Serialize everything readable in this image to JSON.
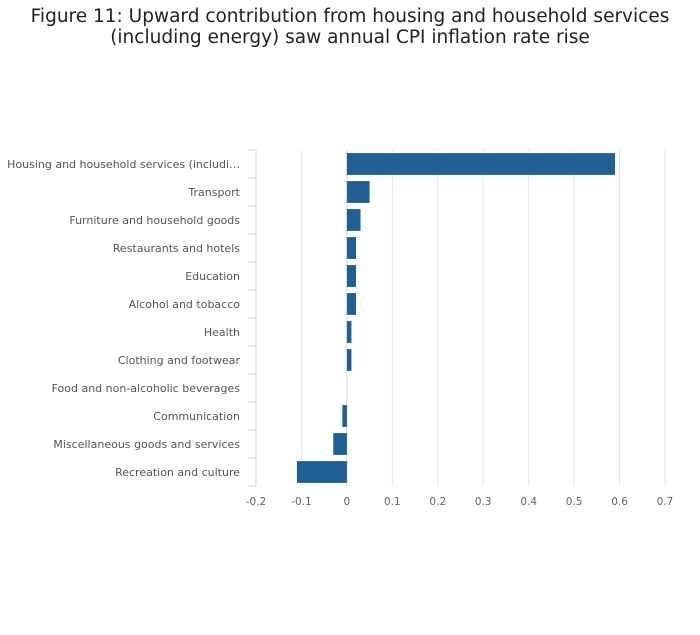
{
  "chart_data": {
    "type": "bar",
    "orientation": "horizontal",
    "title_lines": [
      "Figure 11: Upward contribution from housing and household services",
      "(including energy) saw annual CPI inflation rate rise"
    ],
    "categories": [
      "Housing and household services (includi…",
      "Transport",
      "Furniture and household goods",
      "Restaurants and hotels",
      "Education",
      "Alcohol and tobacco",
      "Health",
      "Clothing and footwear",
      "Food and non-alcoholic beverages",
      "Communication",
      "Miscellaneous goods and services",
      "Recreation and culture"
    ],
    "values": [
      0.59,
      0.05,
      0.03,
      0.02,
      0.02,
      0.02,
      0.01,
      0.01,
      0.0,
      -0.01,
      -0.03,
      -0.11
    ],
    "xticks": [
      -0.2,
      -0.1,
      0,
      0.1,
      0.2,
      0.3,
      0.4,
      0.5,
      0.6,
      0.7
    ],
    "xtick_labels": [
      "-0.2",
      "-0.1",
      "0",
      "0.1",
      "0.2",
      "0.3",
      "0.4",
      "0.5",
      "0.6",
      "0.7"
    ],
    "xlim": [
      -0.2,
      0.7
    ],
    "xlabel": "",
    "ylabel": "",
    "bar_color": "#206095",
    "grid": true
  }
}
